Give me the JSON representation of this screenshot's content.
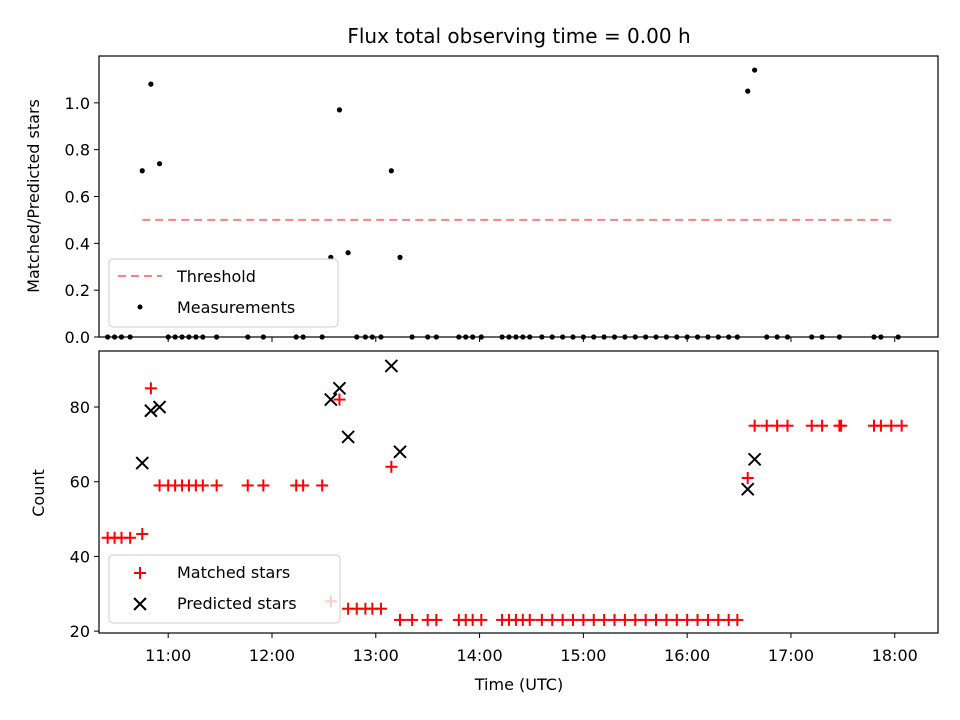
{
  "chart_data": [
    {
      "type": "scatter",
      "title": "Flux total observing time = 0.00 h",
      "ylabel": "Matched/Predicted stars",
      "xlabel": "",
      "ylim": [
        0,
        1.2
      ],
      "xlim": [
        "10:20",
        "18:25"
      ],
      "x_tick_labels": [
        "11:00",
        "12:00",
        "13:00",
        "14:00",
        "15:00",
        "16:00",
        "17:00",
        "18:00"
      ],
      "x_tick_labels_visible": false,
      "y_ticks": [
        "0.0",
        "0.2",
        "0.4",
        "0.6",
        "0.8",
        "1.0"
      ],
      "legend_position": "lower-left",
      "grid": false,
      "series": [
        {
          "name": "Threshold",
          "kind": "dashed-line",
          "color": "#ff7f7f",
          "x": [
            "10:45",
            "17:59"
          ],
          "y": [
            0.5,
            0.5
          ]
        },
        {
          "name": "Measurements",
          "kind": "dot",
          "color": "#000000",
          "points": [
            [
              "10:25",
              0.0
            ],
            [
              "10:29",
              0.0
            ],
            [
              "10:33",
              0.0
            ],
            [
              "10:38",
              0.0
            ],
            [
              "10:45",
              0.71
            ],
            [
              "10:50",
              1.08
            ],
            [
              "10:55",
              0.74
            ],
            [
              "11:00",
              0.0
            ],
            [
              "11:04",
              0.0
            ],
            [
              "11:08",
              0.0
            ],
            [
              "11:12",
              0.0
            ],
            [
              "11:16",
              0.0
            ],
            [
              "11:20",
              0.0
            ],
            [
              "11:28",
              0.0
            ],
            [
              "11:46",
              0.0
            ],
            [
              "11:55",
              0.0
            ],
            [
              "12:14",
              0.0
            ],
            [
              "12:18",
              0.0
            ],
            [
              "12:29",
              0.0
            ],
            [
              "12:34",
              0.34
            ],
            [
              "12:39",
              0.97
            ],
            [
              "12:44",
              0.36
            ],
            [
              "12:49",
              0.0
            ],
            [
              "12:54",
              0.0
            ],
            [
              "12:58",
              0.0
            ],
            [
              "13:03",
              0.0
            ],
            [
              "13:09",
              0.71
            ],
            [
              "13:14",
              0.34
            ],
            [
              "13:21",
              0.0
            ],
            [
              "13:30",
              0.0
            ],
            [
              "13:35",
              0.0
            ],
            [
              "13:48",
              0.0
            ],
            [
              "13:52",
              0.0
            ],
            [
              "13:56",
              0.0
            ],
            [
              "14:01",
              0.0
            ],
            [
              "14:13",
              0.0
            ],
            [
              "14:17",
              0.0
            ],
            [
              "14:21",
              0.0
            ],
            [
              "14:25",
              0.0
            ],
            [
              "14:29",
              0.0
            ],
            [
              "14:36",
              0.0
            ],
            [
              "14:42",
              0.0
            ],
            [
              "14:48",
              0.0
            ],
            [
              "14:54",
              0.0
            ],
            [
              "15:00",
              0.0
            ],
            [
              "15:06",
              0.0
            ],
            [
              "15:12",
              0.0
            ],
            [
              "15:18",
              0.0
            ],
            [
              "15:24",
              0.0
            ],
            [
              "15:30",
              0.0
            ],
            [
              "15:36",
              0.0
            ],
            [
              "15:42",
              0.0
            ],
            [
              "15:48",
              0.0
            ],
            [
              "15:54",
              0.0
            ],
            [
              "16:00",
              0.0
            ],
            [
              "16:06",
              0.0
            ],
            [
              "16:12",
              0.0
            ],
            [
              "16:18",
              0.0
            ],
            [
              "16:24",
              0.0
            ],
            [
              "16:29",
              0.0
            ],
            [
              "16:35",
              1.05
            ],
            [
              "16:39",
              1.14
            ],
            [
              "16:46",
              0.0
            ],
            [
              "16:52",
              0.0
            ],
            [
              "16:58",
              0.0
            ],
            [
              "17:12",
              0.0
            ],
            [
              "17:18",
              0.0
            ],
            [
              "17:28",
              0.0
            ],
            [
              "17:48",
              0.0
            ],
            [
              "17:52",
              0.0
            ],
            [
              "18:02",
              0.0
            ]
          ]
        }
      ]
    },
    {
      "type": "scatter",
      "title": "",
      "xlabel": "Time (UTC)",
      "ylabel": "Count",
      "ylim": [
        19.5,
        95
      ],
      "xlim": [
        "10:20",
        "18:25"
      ],
      "x_tick_labels": [
        "11:00",
        "12:00",
        "13:00",
        "14:00",
        "15:00",
        "16:00",
        "17:00",
        "18:00"
      ],
      "y_ticks": [
        "20",
        "40",
        "60",
        "80"
      ],
      "legend_position": "lower-left",
      "grid": false,
      "series": [
        {
          "name": "Matched stars",
          "kind": "plus",
          "color": "#ff0000",
          "points": [
            [
              "10:25",
              45
            ],
            [
              "10:29",
              45
            ],
            [
              "10:33",
              45
            ],
            [
              "10:38",
              45
            ],
            [
              "10:45",
              46
            ],
            [
              "10:50",
              85
            ],
            [
              "10:55",
              59
            ],
            [
              "11:00",
              59
            ],
            [
              "11:04",
              59
            ],
            [
              "11:08",
              59
            ],
            [
              "11:12",
              59
            ],
            [
              "11:16",
              59
            ],
            [
              "11:20",
              59
            ],
            [
              "11:28",
              59
            ],
            [
              "11:46",
              59
            ],
            [
              "11:55",
              59
            ],
            [
              "12:14",
              59
            ],
            [
              "12:18",
              59
            ],
            [
              "12:29",
              59
            ],
            [
              "12:34",
              28
            ],
            [
              "12:39",
              82
            ],
            [
              "12:44",
              26
            ],
            [
              "12:49",
              26
            ],
            [
              "12:54",
              26
            ],
            [
              "12:58",
              26
            ],
            [
              "13:03",
              26
            ],
            [
              "13:09",
              64
            ],
            [
              "13:14",
              23
            ],
            [
              "13:21",
              23
            ],
            [
              "13:30",
              23
            ],
            [
              "13:35",
              23
            ],
            [
              "13:48",
              23
            ],
            [
              "13:52",
              23
            ],
            [
              "13:56",
              23
            ],
            [
              "14:01",
              23
            ],
            [
              "14:13",
              23
            ],
            [
              "14:17",
              23
            ],
            [
              "14:21",
              23
            ],
            [
              "14:25",
              23
            ],
            [
              "14:29",
              23
            ],
            [
              "14:36",
              23
            ],
            [
              "14:42",
              23
            ],
            [
              "14:48",
              23
            ],
            [
              "14:54",
              23
            ],
            [
              "15:00",
              23
            ],
            [
              "15:06",
              23
            ],
            [
              "15:12",
              23
            ],
            [
              "15:18",
              23
            ],
            [
              "15:24",
              23
            ],
            [
              "15:30",
              23
            ],
            [
              "15:36",
              23
            ],
            [
              "15:42",
              23
            ],
            [
              "15:48",
              23
            ],
            [
              "15:54",
              23
            ],
            [
              "16:00",
              23
            ],
            [
              "16:06",
              23
            ],
            [
              "16:12",
              23
            ],
            [
              "16:18",
              23
            ],
            [
              "16:24",
              23
            ],
            [
              "16:29",
              23
            ],
            [
              "16:35",
              61
            ],
            [
              "16:39",
              75
            ],
            [
              "16:46",
              75
            ],
            [
              "16:52",
              75
            ],
            [
              "16:58",
              75
            ],
            [
              "17:12",
              75
            ],
            [
              "17:18",
              75
            ],
            [
              "17:28",
              75
            ],
            [
              "17:29",
              75
            ],
            [
              "17:48",
              75
            ],
            [
              "17:52",
              75
            ],
            [
              "17:58",
              75
            ],
            [
              "18:04",
              75
            ]
          ]
        },
        {
          "name": "Predicted stars",
          "kind": "cross",
          "color": "#000000",
          "points": [
            [
              "10:45",
              65
            ],
            [
              "10:50",
              79
            ],
            [
              "10:55",
              80
            ],
            [
              "12:34",
              82
            ],
            [
              "12:39",
              85
            ],
            [
              "12:44",
              72
            ],
            [
              "13:09",
              91
            ],
            [
              "13:14",
              68
            ],
            [
              "16:35",
              58
            ],
            [
              "16:39",
              66
            ]
          ]
        }
      ]
    }
  ]
}
